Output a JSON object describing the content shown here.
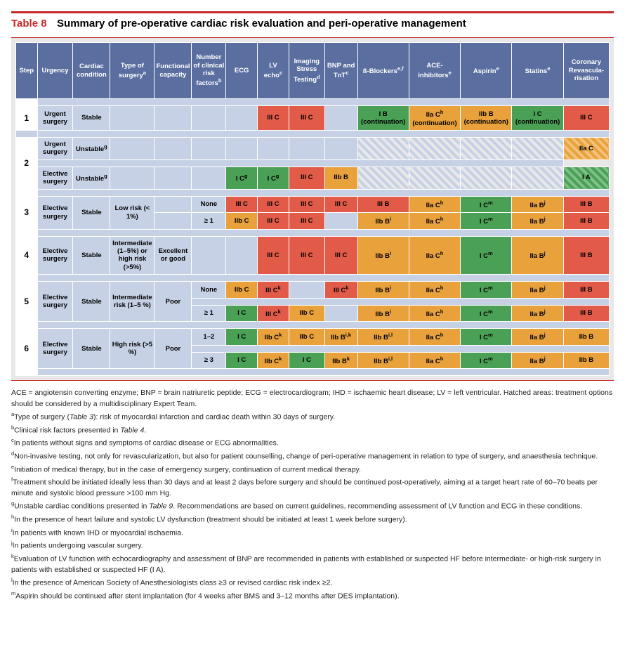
{
  "title": {
    "label": "Table 8",
    "text": "Summary of pre-operative cardiac risk evaluation and peri-operative management"
  },
  "cols": [
    {
      "label": "Step",
      "w": 30
    },
    {
      "label": "Urgency",
      "w": 50
    },
    {
      "label": "Cardiac condition",
      "w": 52
    },
    {
      "label": "Type of surgery",
      "sup": "a",
      "w": 62
    },
    {
      "label": "Functional capacity",
      "w": 52
    },
    {
      "label": "Number of clinical risk factors",
      "sup": "b",
      "w": 48
    },
    {
      "label": "ECG",
      "w": 44
    },
    {
      "label": "LV echo",
      "sup": "c",
      "w": 44
    },
    {
      "label": "Imaging Stress Testing",
      "sup": "d",
      "w": 50
    },
    {
      "label": "BNP and TnT",
      "sup": "c",
      "w": 46
    },
    {
      "label": "ß-Blockers",
      "sup": "e,f",
      "w": 72
    },
    {
      "label": "ACE-inhibitors",
      "sup": "e",
      "w": 72
    },
    {
      "label": "Aspirin",
      "sup": "e",
      "w": 72
    },
    {
      "label": "Statins",
      "sup": "e",
      "w": 72
    },
    {
      "label": "Coronary Revascula-risation",
      "w": 64
    }
  ],
  "rows": [
    {
      "spacer": true
    },
    {
      "step": "1",
      "stepspan": 1,
      "urgency": "Urgent surgery",
      "cardiac": "Stable",
      "cells": [
        {
          "c": "blank"
        },
        {
          "c": "blank"
        },
        {
          "c": "blank"
        },
        {
          "c": "blank"
        },
        {
          "t": "III C",
          "c": "red"
        },
        {
          "t": "III C",
          "c": "red"
        },
        {
          "c": "blank"
        },
        {
          "t": "I B (continuation)",
          "c": "green"
        },
        {
          "t": "IIa C",
          "sup": "h",
          "post": " (continuation)",
          "c": "orange"
        },
        {
          "t": "IIb B (continuation)",
          "c": "orange"
        },
        {
          "t": "I C (continuation)",
          "c": "green"
        },
        {
          "t": "III C",
          "c": "red"
        }
      ]
    },
    {
      "spacer": true,
      "preservestep": true
    },
    {
      "step": "2",
      "stepspan": 3,
      "urgency": "Urgent surgery",
      "cardiac": "Unstable",
      "cardsup": "g",
      "cells": [
        {
          "c": "blank"
        },
        {
          "c": "blank"
        },
        {
          "c": "blank"
        },
        {
          "c": "blank"
        },
        {
          "c": "blank"
        },
        {
          "c": "blank"
        },
        {
          "c": "blank"
        },
        {
          "c": "hatch"
        },
        {
          "c": "hatch"
        },
        {
          "c": "hatch"
        },
        {
          "c": "hatch"
        },
        {
          "t": "IIa C",
          "c": "hatch-o"
        }
      ]
    },
    {
      "innerspacer": true
    },
    {
      "urgency": "Elective surgery",
      "cardiac": "Unstable",
      "cardsup": "g",
      "cells": [
        {
          "c": "blank"
        },
        {
          "c": "blank"
        },
        {
          "c": "blank"
        },
        {
          "t": "I C",
          "sup": "g",
          "c": "green"
        },
        {
          "t": "I C",
          "sup": "g",
          "c": "green"
        },
        {
          "t": "III C",
          "c": "red"
        },
        {
          "t": "IIb B",
          "c": "orange"
        },
        {
          "c": "hatch"
        },
        {
          "c": "hatch"
        },
        {
          "c": "hatch"
        },
        {
          "c": "hatch"
        },
        {
          "t": "I A",
          "c": "hatch-g"
        }
      ]
    },
    {
      "spacer": true
    },
    {
      "step": "3",
      "stepspan": 2,
      "urgency": "Elective surgery",
      "urgspan": 2,
      "cardiac": "Stable",
      "cardspan": 2,
      "type": "Low risk (< 1%)",
      "typespan": 2,
      "cells": [
        {
          "c": "blank"
        },
        {
          "t": "None",
          "c": "lblue"
        },
        {
          "t": "III C",
          "c": "red"
        },
        {
          "t": "III C",
          "c": "red"
        },
        {
          "t": "III C",
          "c": "red"
        },
        {
          "t": "III C",
          "c": "red"
        },
        {
          "t": "III B",
          "c": "red"
        },
        {
          "t": "IIa C",
          "sup": "h",
          "c": "orange"
        },
        {
          "t": "I C",
          "sup": "m",
          "c": "green"
        },
        {
          "t": "IIa B",
          "sup": "j",
          "c": "orange"
        },
        {
          "t": "III B",
          "c": "red"
        }
      ]
    },
    {
      "cells": [
        {
          "c": "blank"
        },
        {
          "t": "≥ 1",
          "c": "lblue"
        },
        {
          "t": "IIb C",
          "c": "orange"
        },
        {
          "t": "III C",
          "c": "red"
        },
        {
          "t": "III C",
          "c": "red"
        },
        {
          "c": "blank"
        },
        {
          "t": "IIb B",
          "sup": "i",
          "c": "orange"
        },
        {
          "t": "IIa C",
          "sup": "h",
          "c": "orange"
        },
        {
          "t": "I C",
          "sup": "m",
          "c": "green"
        },
        {
          "t": "IIa B",
          "sup": "j",
          "c": "orange"
        },
        {
          "t": "III B",
          "c": "red"
        }
      ]
    },
    {
      "spacer": true
    },
    {
      "step": "4",
      "stepspan": 1,
      "urgency": "Elective surgery",
      "cardiac": "Stable",
      "type": "Intermediate (1–5%) <b>or</b> high risk (>5%)",
      "html": true,
      "func": "Excellent or good",
      "cells": [
        {
          "c": "blank"
        },
        {
          "c": "blank"
        },
        {
          "t": "III C",
          "c": "red"
        },
        {
          "t": "III C",
          "c": "red"
        },
        {
          "t": "III C",
          "c": "red"
        },
        {
          "t": "IIb B",
          "sup": "i",
          "c": "orange"
        },
        {
          "t": "IIa C",
          "sup": "h",
          "c": "orange"
        },
        {
          "t": "I C",
          "sup": "m",
          "c": "green"
        },
        {
          "t": "IIa B",
          "sup": "j",
          "c": "orange"
        },
        {
          "t": "III B",
          "c": "red"
        }
      ]
    },
    {
      "spacer": true
    },
    {
      "step": "5",
      "stepspan": 3,
      "urgency": "Elective surgery",
      "urgspan": 3,
      "cardiac": "Stable",
      "cardspan": 3,
      "type": "Intermediate risk (1–5 %)",
      "typespan": 3,
      "func": "Poor",
      "funcspan": 3,
      "cells": [
        {
          "t": "None",
          "c": "lblue"
        },
        {
          "t": "IIb C",
          "c": "orange"
        },
        {
          "t": "III C",
          "sup": "k",
          "c": "red"
        },
        {
          "c": "blank"
        },
        {
          "t": "III C",
          "sup": "k",
          "c": "red"
        },
        {
          "t": "IIb B",
          "sup": "i",
          "c": "orange"
        },
        {
          "t": "IIa C",
          "sup": "h",
          "c": "orange"
        },
        {
          "t": "I C",
          "sup": "m",
          "c": "green"
        },
        {
          "t": "IIa B",
          "sup": "j",
          "c": "orange"
        },
        {
          "t": "III B",
          "c": "red"
        }
      ]
    },
    {
      "innerspacer": true,
      "skip": 5
    },
    {
      "cells": [
        {
          "t": "≥ 1",
          "c": "lblue"
        },
        {
          "t": "I C",
          "c": "green"
        },
        {
          "t": "III C",
          "sup": "k",
          "c": "red"
        },
        {
          "t": "IIb C",
          "c": "orange"
        },
        {
          "c": "blank"
        },
        {
          "t": "IIb B",
          "sup": "i",
          "c": "orange"
        },
        {
          "t": "IIa C",
          "sup": "h",
          "c": "orange"
        },
        {
          "t": "I C",
          "sup": "m",
          "c": "green"
        },
        {
          "t": "IIa B",
          "sup": "j",
          "c": "orange"
        },
        {
          "t": "III B",
          "c": "red"
        }
      ]
    },
    {
      "spacer": true
    },
    {
      "step": "6",
      "stepspan": 3,
      "urgency": "Elective surgery",
      "urgspan": 3,
      "cardiac": "Stable",
      "cardspan": 3,
      "type": "High risk (>5 %)",
      "typespan": 3,
      "func": "Poor",
      "funcspan": 3,
      "cells": [
        {
          "t": "1–2",
          "c": "lblue"
        },
        {
          "t": "I C",
          "c": "green"
        },
        {
          "t": "IIb C",
          "sup": "k",
          "c": "orange"
        },
        {
          "t": "IIb C",
          "c": "orange"
        },
        {
          "t": "IIb B",
          "sup": "i,k",
          "c": "orange"
        },
        {
          "t": "IIb B",
          "sup": "i,l",
          "c": "orange"
        },
        {
          "t": "IIa C",
          "sup": "h",
          "c": "orange"
        },
        {
          "t": "I C",
          "sup": "m",
          "c": "green"
        },
        {
          "t": "IIa B",
          "sup": "j",
          "c": "orange"
        },
        {
          "t": "IIb B",
          "c": "orange"
        }
      ]
    },
    {
      "innerspacer": true,
      "skip": 5
    },
    {
      "cells": [
        {
          "t": "≥ 3",
          "c": "lblue"
        },
        {
          "t": "I C",
          "c": "green"
        },
        {
          "t": "IIb C",
          "sup": "k",
          "c": "orange"
        },
        {
          "t": "I C",
          "c": "green"
        },
        {
          "t": "IIb B",
          "sup": "k",
          "c": "orange"
        },
        {
          "t": "IIb B",
          "sup": "i,l",
          "c": "orange"
        },
        {
          "t": "IIa C",
          "sup": "h",
          "c": "orange"
        },
        {
          "t": "I C",
          "sup": "m",
          "c": "green"
        },
        {
          "t": "IIa B",
          "sup": "j",
          "c": "orange"
        },
        {
          "t": "IIb B",
          "c": "orange"
        }
      ]
    },
    {
      "spacer": true
    }
  ],
  "notes": [
    "ACE = angiotensin converting enzyme; BNP = brain natriuretic peptide; ECG = electrocardiogram; IHD = ischaemic heart disease; LV = left ventricular. Hatched areas: treatment options should be considered by a multidisciplinary Expert Team.",
    "<sup>a</sup>Type of surgery (<i>Table 3</i>): risk of myocardial infarction and cardiac death within 30 days of surgery.",
    "<sup>b</sup>Clinical risk factors presented in <i>Table 4</i>.",
    "<sup>c</sup>In patients without signs and symptoms of cardiac disease or ECG abnormalities.",
    "<sup>d</sup>Non-invasive testing, not only for revascularization, but also for patient counselling, change of peri-operative management in relation to type of surgery, and anaesthesia technique.",
    "<sup>e</sup>Initiation of medical therapy, but in the case of emergency surgery, continuation of current medical therapy.",
    "<sup>f</sup>Treatment should be initiated ideally less than 30 days and at least 2 days before surgery and should be continued post-operatively, aiming at a target heart rate of 60–70 beats per minute and systolic blood pressure >100 mm Hg.",
    "<sup>g</sup>Unstable cardiac conditions presented in <i>Table 9</i>. Recommendations are based on current guidelines, recommending assessment of LV function and ECG in these conditions.",
    "<sup>h</sup>In the presence of heart failure and systolic LV dysfunction (treatment should be initiated at least 1 week before surgery).",
    "<sup>i</sup>In patients with known IHD or myocardial ischaemia.",
    "<sup>j</sup>In patients undergoing vascular surgery.",
    "<sup>k</sup>Evaluation of LV function with echocardiography and assessment of BNP are recommended in patients with established or suspected HF before intermediate- or high-risk surgery in patients with established or suspected HF (I A).",
    "<sup>l</sup>In the presence of American Society of Anesthesiologists class ≥3 or revised cardiac risk index ≥2.",
    "<sup>m</sup>Aspirin should be continued after stent implantation (for 4 weeks after BMS and 3–12 months after DES implantation)."
  ]
}
